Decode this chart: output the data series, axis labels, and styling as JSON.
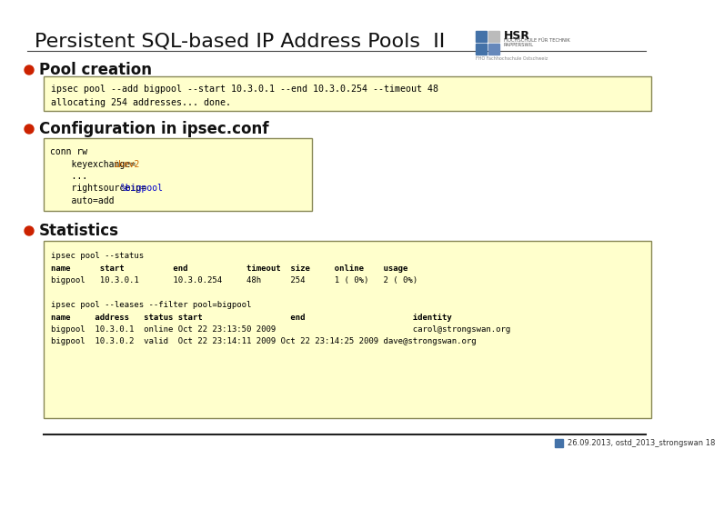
{
  "title": "Persistent SQL-based IP Address Pools  II",
  "title_fontsize": 16,
  "background_color": "#ffffff",
  "bullet_color": "#cc2200",
  "bullet1_text": "Pool creation",
  "bullet2_text": "Configuration in ipsec.conf",
  "bullet3_text": "Statistics",
  "box_bg": "#ffffcc",
  "box_border": "#888855",
  "box1_lines": [
    "ipsec pool --add bigpool --start 10.3.0.1 --end 10.3.0.254 --timeout 48",
    "allocating 254 addresses... done."
  ],
  "box2_lines": [
    [
      [
        "conn rw",
        "#000000"
      ]
    ],
    [
      [
        "    keyexchange=",
        "#000000"
      ],
      [
        "ikev2",
        "#cc6600"
      ]
    ],
    [
      [
        "    ...",
        "#000000"
      ]
    ],
    [
      [
        "    rightsourceip=",
        "#000000"
      ],
      [
        "%bigpool",
        "#0000cc"
      ]
    ],
    [
      [
        "    auto=add",
        "#000000"
      ]
    ]
  ],
  "box3_lines": [
    [
      "ipsec pool --status",
      false
    ],
    [
      "name      start          end            timeout  size     online    usage",
      true
    ],
    [
      "bigpool   10.3.0.1       10.3.0.254     48h      254      1 ( 0%)   2 ( 0%)",
      false
    ],
    [
      "",
      false
    ],
    [
      "ipsec pool --leases --filter pool=bigpool",
      false
    ],
    [
      "name     address   status start                  end                      identity",
      true
    ],
    [
      "bigpool  10.3.0.1  online Oct 22 23:13:50 2009                            carol@strongswan.org",
      false
    ],
    [
      "bigpool  10.3.0.2  valid  Oct 22 23:14:11 2009 Oct 22 23:14:25 2009 dave@strongswan.org",
      false
    ]
  ],
  "footer_line": "26.09.2013, ostd_2013_strongswan 18",
  "footer_color": "#333333"
}
